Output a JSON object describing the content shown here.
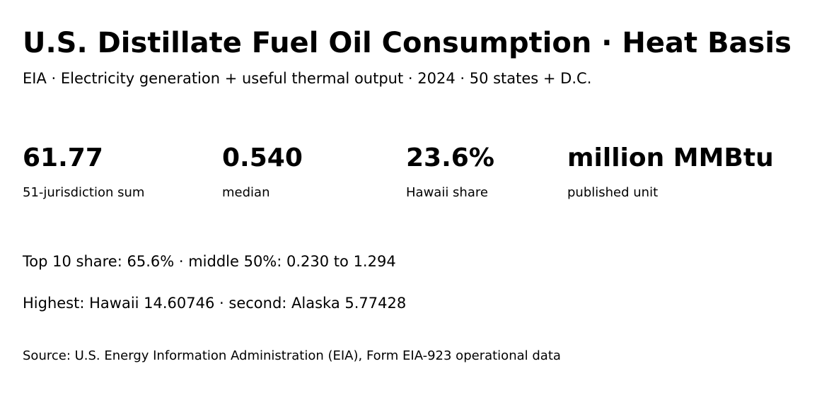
{
  "header": {
    "title": "U.S. Distillate Fuel Oil Consumption · Heat Basis",
    "subtitle": "EIA · Electricity generation + useful thermal output · 2024 · 50 states + D.C."
  },
  "stats": [
    {
      "value": "61.77",
      "label": "51-jurisdiction sum"
    },
    {
      "value": "0.540",
      "label": "median"
    },
    {
      "value": "23.6%",
      "label": "Hawaii share"
    },
    {
      "value": "million MMBtu",
      "label": "published unit"
    }
  ],
  "notes": [
    "Top 10 share: 65.6% · middle 50%: 0.230 to 1.294",
    "Highest: Hawaii 14.60746 · second: Alaska 5.77428"
  ],
  "source": "Source: U.S. Energy Information Administration (EIA), Form EIA-923 operational data"
}
